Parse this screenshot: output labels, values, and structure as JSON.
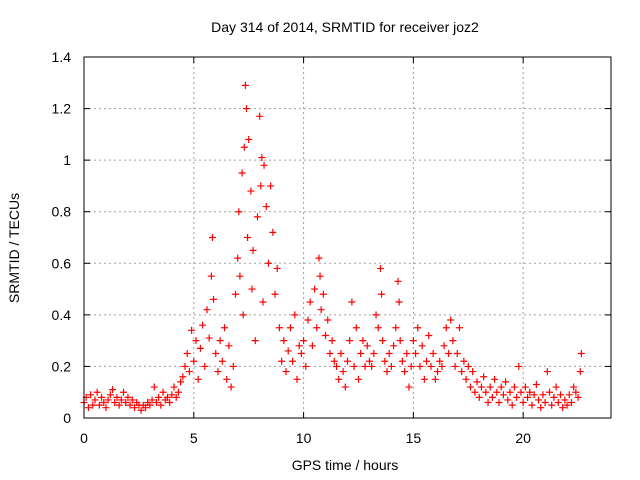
{
  "chart_data": {
    "type": "scatter",
    "title": "Day 314 of 2014, SRMTID for receiver joz2",
    "xlabel": "GPS time / hours",
    "ylabel": "SRMTID / TECUs",
    "xlim": [
      0,
      24
    ],
    "ylim": [
      0,
      1.4
    ],
    "xticks": [
      0,
      5,
      10,
      15,
      20
    ],
    "xtick_labels": [
      "0",
      "5",
      "10",
      "15",
      "20"
    ],
    "yticks": [
      0,
      0.2,
      0.4,
      0.6,
      0.8,
      1.0,
      1.2,
      1.4
    ],
    "ytick_labels": [
      "0",
      "0.2",
      "0.4",
      "0.6",
      "0.8",
      "1",
      "1.2",
      "1.4"
    ],
    "grid": true,
    "marker": "+",
    "marker_color": "#ff0000",
    "series": [
      {
        "name": "SRMTID",
        "points": [
          [
            0.0,
            0.06
          ],
          [
            0.1,
            0.08
          ],
          [
            0.2,
            0.04
          ],
          [
            0.3,
            0.09
          ],
          [
            0.4,
            0.05
          ],
          [
            0.5,
            0.07
          ],
          [
            0.6,
            0.1
          ],
          [
            0.7,
            0.05
          ],
          [
            0.8,
            0.08
          ],
          [
            0.9,
            0.06
          ],
          [
            1.0,
            0.04
          ],
          [
            1.1,
            0.07
          ],
          [
            1.2,
            0.09
          ],
          [
            1.3,
            0.11
          ],
          [
            1.4,
            0.06
          ],
          [
            1.5,
            0.08
          ],
          [
            1.6,
            0.05
          ],
          [
            1.7,
            0.07
          ],
          [
            1.8,
            0.1
          ],
          [
            1.9,
            0.06
          ],
          [
            2.0,
            0.08
          ],
          [
            2.1,
            0.05
          ],
          [
            2.2,
            0.07
          ],
          [
            2.3,
            0.04
          ],
          [
            2.4,
            0.06
          ],
          [
            2.5,
            0.05
          ],
          [
            2.6,
            0.03
          ],
          [
            2.7,
            0.05
          ],
          [
            2.8,
            0.04
          ],
          [
            2.9,
            0.06
          ],
          [
            3.0,
            0.05
          ],
          [
            3.1,
            0.07
          ],
          [
            3.2,
            0.12
          ],
          [
            3.3,
            0.06
          ],
          [
            3.4,
            0.08
          ],
          [
            3.5,
            0.05
          ],
          [
            3.6,
            0.1
          ],
          [
            3.7,
            0.07
          ],
          [
            3.8,
            0.08
          ],
          [
            3.9,
            0.06
          ],
          [
            4.0,
            0.09
          ],
          [
            4.1,
            0.12
          ],
          [
            4.2,
            0.08
          ],
          [
            4.3,
            0.1
          ],
          [
            4.4,
            0.14
          ],
          [
            4.5,
            0.16
          ],
          [
            4.6,
            0.2
          ],
          [
            4.7,
            0.25
          ],
          [
            4.8,
            0.18
          ],
          [
            4.9,
            0.34
          ],
          [
            5.0,
            0.22
          ],
          [
            5.1,
            0.3
          ],
          [
            5.2,
            0.15
          ],
          [
            5.3,
            0.27
          ],
          [
            5.4,
            0.36
          ],
          [
            5.5,
            0.2
          ],
          [
            5.6,
            0.42
          ],
          [
            5.7,
            0.31
          ],
          [
            5.8,
            0.55
          ],
          [
            5.85,
            0.7
          ],
          [
            5.9,
            0.46
          ],
          [
            6.0,
            0.25
          ],
          [
            6.1,
            0.18
          ],
          [
            6.2,
            0.3
          ],
          [
            6.3,
            0.22
          ],
          [
            6.4,
            0.35
          ],
          [
            6.5,
            0.15
          ],
          [
            6.6,
            0.28
          ],
          [
            6.7,
            0.12
          ],
          [
            6.8,
            0.2
          ],
          [
            6.9,
            0.48
          ],
          [
            7.0,
            0.62
          ],
          [
            7.05,
            0.8
          ],
          [
            7.1,
            0.55
          ],
          [
            7.2,
            0.95
          ],
          [
            7.25,
            0.4
          ],
          [
            7.3,
            1.05
          ],
          [
            7.35,
            1.29
          ],
          [
            7.4,
            1.2
          ],
          [
            7.45,
            0.7
          ],
          [
            7.5,
            1.08
          ],
          [
            7.6,
            0.88
          ],
          [
            7.65,
            0.5
          ],
          [
            7.7,
            0.65
          ],
          [
            7.8,
            0.3
          ],
          [
            7.9,
            0.78
          ],
          [
            8.0,
            1.17
          ],
          [
            8.05,
            0.9
          ],
          [
            8.1,
            1.01
          ],
          [
            8.15,
            0.45
          ],
          [
            8.2,
            0.98
          ],
          [
            8.3,
            0.82
          ],
          [
            8.4,
            0.6
          ],
          [
            8.5,
            0.9
          ],
          [
            8.6,
            0.72
          ],
          [
            8.7,
            0.48
          ],
          [
            8.8,
            0.58
          ],
          [
            8.9,
            0.35
          ],
          [
            9.0,
            0.22
          ],
          [
            9.1,
            0.3
          ],
          [
            9.2,
            0.18
          ],
          [
            9.3,
            0.26
          ],
          [
            9.4,
            0.35
          ],
          [
            9.5,
            0.22
          ],
          [
            9.6,
            0.4
          ],
          [
            9.7,
            0.15
          ],
          [
            9.8,
            0.28
          ],
          [
            9.9,
            0.25
          ],
          [
            10.0,
            0.3
          ],
          [
            10.1,
            0.2
          ],
          [
            10.2,
            0.38
          ],
          [
            10.3,
            0.45
          ],
          [
            10.4,
            0.28
          ],
          [
            10.5,
            0.5
          ],
          [
            10.6,
            0.35
          ],
          [
            10.7,
            0.62
          ],
          [
            10.75,
            0.55
          ],
          [
            10.8,
            0.42
          ],
          [
            10.9,
            0.48
          ],
          [
            11.0,
            0.32
          ],
          [
            11.1,
            0.38
          ],
          [
            11.2,
            0.25
          ],
          [
            11.3,
            0.3
          ],
          [
            11.4,
            0.22
          ],
          [
            11.5,
            0.2
          ],
          [
            11.6,
            0.15
          ],
          [
            11.7,
            0.25
          ],
          [
            11.8,
            0.18
          ],
          [
            11.9,
            0.12
          ],
          [
            12.0,
            0.22
          ],
          [
            12.1,
            0.3
          ],
          [
            12.2,
            0.45
          ],
          [
            12.3,
            0.2
          ],
          [
            12.4,
            0.35
          ],
          [
            12.5,
            0.15
          ],
          [
            12.6,
            0.25
          ],
          [
            12.7,
            0.3
          ],
          [
            12.8,
            0.2
          ],
          [
            12.9,
            0.28
          ],
          [
            13.0,
            0.22
          ],
          [
            13.1,
            0.2
          ],
          [
            13.2,
            0.25
          ],
          [
            13.3,
            0.4
          ],
          [
            13.4,
            0.35
          ],
          [
            13.5,
            0.58
          ],
          [
            13.55,
            0.48
          ],
          [
            13.6,
            0.3
          ],
          [
            13.7,
            0.22
          ],
          [
            13.8,
            0.18
          ],
          [
            13.9,
            0.25
          ],
          [
            14.0,
            0.2
          ],
          [
            14.1,
            0.28
          ],
          [
            14.2,
            0.35
          ],
          [
            14.3,
            0.53
          ],
          [
            14.35,
            0.45
          ],
          [
            14.4,
            0.3
          ],
          [
            14.5,
            0.22
          ],
          [
            14.6,
            0.18
          ],
          [
            14.7,
            0.25
          ],
          [
            14.8,
            0.12
          ],
          [
            14.9,
            0.2
          ],
          [
            15.0,
            0.3
          ],
          [
            15.1,
            0.25
          ],
          [
            15.2,
            0.35
          ],
          [
            15.3,
            0.2
          ],
          [
            15.4,
            0.28
          ],
          [
            15.5,
            0.15
          ],
          [
            15.6,
            0.22
          ],
          [
            15.7,
            0.32
          ],
          [
            15.8,
            0.2
          ],
          [
            15.9,
            0.25
          ],
          [
            16.0,
            0.15
          ],
          [
            16.1,
            0.18
          ],
          [
            16.2,
            0.22
          ],
          [
            16.3,
            0.2
          ],
          [
            16.4,
            0.28
          ],
          [
            16.5,
            0.35
          ],
          [
            16.6,
            0.25
          ],
          [
            16.7,
            0.38
          ],
          [
            16.8,
            0.3
          ],
          [
            16.9,
            0.2
          ],
          [
            17.0,
            0.25
          ],
          [
            17.1,
            0.35
          ],
          [
            17.2,
            0.18
          ],
          [
            17.3,
            0.22
          ],
          [
            17.4,
            0.15
          ],
          [
            17.5,
            0.2
          ],
          [
            17.6,
            0.12
          ],
          [
            17.7,
            0.18
          ],
          [
            17.8,
            0.1
          ],
          [
            17.9,
            0.14
          ],
          [
            18.0,
            0.08
          ],
          [
            18.1,
            0.12
          ],
          [
            18.2,
            0.16
          ],
          [
            18.3,
            0.1
          ],
          [
            18.4,
            0.06
          ],
          [
            18.5,
            0.12
          ],
          [
            18.6,
            0.08
          ],
          [
            18.7,
            0.15
          ],
          [
            18.8,
            0.1
          ],
          [
            18.9,
            0.06
          ],
          [
            19.0,
            0.12
          ],
          [
            19.1,
            0.09
          ],
          [
            19.2,
            0.14
          ],
          [
            19.3,
            0.07
          ],
          [
            19.4,
            0.1
          ],
          [
            19.5,
            0.05
          ],
          [
            19.6,
            0.12
          ],
          [
            19.7,
            0.08
          ],
          [
            19.8,
            0.2
          ],
          [
            19.9,
            0.1
          ],
          [
            20.0,
            0.06
          ],
          [
            20.1,
            0.12
          ],
          [
            20.2,
            0.08
          ],
          [
            20.3,
            0.1
          ],
          [
            20.4,
            0.05
          ],
          [
            20.5,
            0.09
          ],
          [
            20.6,
            0.13
          ],
          [
            20.7,
            0.07
          ],
          [
            20.8,
            0.04
          ],
          [
            20.9,
            0.09
          ],
          [
            21.0,
            0.06
          ],
          [
            21.1,
            0.18
          ],
          [
            21.2,
            0.1
          ],
          [
            21.3,
            0.05
          ],
          [
            21.4,
            0.08
          ],
          [
            21.5,
            0.12
          ],
          [
            21.6,
            0.06
          ],
          [
            21.7,
            0.09
          ],
          [
            21.8,
            0.04
          ],
          [
            21.9,
            0.07
          ],
          [
            22.0,
            0.05
          ],
          [
            22.1,
            0.09
          ],
          [
            22.2,
            0.06
          ],
          [
            22.3,
            0.12
          ],
          [
            22.4,
            0.1
          ],
          [
            22.5,
            0.08
          ],
          [
            22.6,
            0.18
          ],
          [
            22.65,
            0.25
          ]
        ]
      }
    ]
  }
}
